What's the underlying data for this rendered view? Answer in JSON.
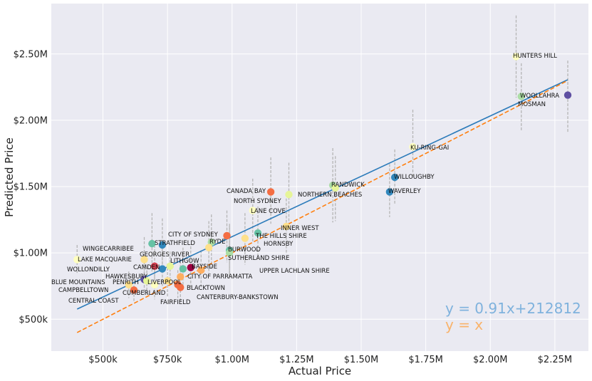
{
  "chart_data": {
    "type": "scatter",
    "title": "",
    "xlabel": "Actual Price",
    "ylabel": "Predicted Price",
    "xlim": [
      300000,
      2380000
    ],
    "ylim": [
      260000,
      2880000
    ],
    "x_ticks": [
      {
        "value": 500000,
        "label": "$500k"
      },
      {
        "value": 750000,
        "label": "$750k"
      },
      {
        "value": 1000000,
        "label": "$1.00M"
      },
      {
        "value": 1250000,
        "label": "$1.25M"
      },
      {
        "value": 1500000,
        "label": "$1.50M"
      },
      {
        "value": 1750000,
        "label": "$1.75M"
      },
      {
        "value": 2000000,
        "label": "$2.00M"
      },
      {
        "value": 2250000,
        "label": "$2.25M"
      }
    ],
    "y_ticks": [
      {
        "value": 500000,
        "label": "$500k"
      },
      {
        "value": 1000000,
        "label": "$1.00M"
      },
      {
        "value": 1500000,
        "label": "$1.50M"
      },
      {
        "value": 2000000,
        "label": "$2.00M"
      },
      {
        "value": 2500000,
        "label": "$2.50M"
      }
    ],
    "grid": true,
    "background": "#eaeaf2",
    "fit_line": {
      "slope": 0.91,
      "intercept": 212812,
      "color": "#2b7bba",
      "label": "y = 0.91x+212812"
    },
    "identity_line": {
      "color": "#ff7f0e",
      "label": "y = x"
    },
    "points": [
      {
        "name": "HUNTERS HILL",
        "x": 2100000,
        "y": 2480000,
        "lo": 2170000,
        "hi": 2790000,
        "color": "#ffffbf"
      },
      {
        "name": "WOOLLAHRA",
        "x": 2120000,
        "y": 2180000,
        "lo": 1920000,
        "hi": 2430000,
        "color": "#abdda4"
      },
      {
        "name": "MOSMAN",
        "x": 2300000,
        "y": 2190000,
        "lo": 1910000,
        "hi": 2450000,
        "color": "#5e4fa2"
      },
      {
        "name": "KU-RING-GAI",
        "x": 1700000,
        "y": 1800000,
        "lo": 1580000,
        "hi": 2080000,
        "color": "#ffffbf"
      },
      {
        "name": "WILLOUGHBY",
        "x": 1630000,
        "y": 1570000,
        "lo": 1370000,
        "hi": 1780000,
        "color": "#3288bd"
      },
      {
        "name": "WAVERLEY",
        "x": 1610000,
        "y": 1460000,
        "lo": 1270000,
        "hi": 1670000,
        "color": "#3288bd"
      },
      {
        "name": "RANDWICK",
        "x": 1390000,
        "y": 1510000,
        "lo": 1230000,
        "hi": 1790000,
        "color": "#abdda4"
      },
      {
        "name": "NORTHERN BEACHES",
        "x": 1400000,
        "y": 1490000,
        "lo": 1240000,
        "hi": 1730000,
        "color": "#e6f598"
      },
      {
        "name": "CANADA BAY",
        "x": 1150000,
        "y": 1460000,
        "lo": 1220000,
        "hi": 1720000,
        "color": "#f46d43"
      },
      {
        "name": "NORTH SYDNEY",
        "x": 1220000,
        "y": 1440000,
        "lo": 1180000,
        "hi": 1680000,
        "color": "#e6f598"
      },
      {
        "name": "LANE COVE",
        "x": 1080000,
        "y": 1320000,
        "lo": 1080000,
        "hi": 1560000,
        "color": "#ffffbf"
      },
      {
        "name": "INNER WEST",
        "x": 1210000,
        "y": 1200000,
        "lo": 990000,
        "hi": 1410000,
        "color": "#fee08b"
      },
      {
        "name": "THE HILLS SHIRE",
        "x": 1100000,
        "y": 1150000,
        "lo": 950000,
        "hi": 1350000,
        "color": "#66c2a5"
      },
      {
        "name": "CITY OF SYDNEY",
        "x": 980000,
        "y": 1130000,
        "lo": 930000,
        "hi": 1320000,
        "color": "#f46d43"
      },
      {
        "name": "HORNSBY",
        "x": 1050000,
        "y": 1110000,
        "lo": 910000,
        "hi": 1300000,
        "color": "#fee08b"
      },
      {
        "name": "RYDE",
        "x": 920000,
        "y": 1080000,
        "lo": 880000,
        "hi": 1290000,
        "color": "#abdda4"
      },
      {
        "name": "STRATHFIELD",
        "x": 730000,
        "y": 1060000,
        "lo": 860000,
        "hi": 1260000,
        "color": "#3288bd"
      },
      {
        "name": "WINGECARRIBEE",
        "x": 690000,
        "y": 1070000,
        "lo": 850000,
        "hi": 1300000,
        "color": "#66c2a5"
      },
      {
        "name": "GEORGES RIVER",
        "x": 910000,
        "y": 1040000,
        "lo": 850000,
        "hi": 1240000,
        "color": "#fee08b"
      },
      {
        "name": "BURWOOD",
        "x": 990000,
        "y": 1020000,
        "lo": 830000,
        "hi": 1220000,
        "color": "#66c2a5"
      },
      {
        "name": "SUTHERLAND SHIRE",
        "x": 990000,
        "y": 1000000,
        "lo": 810000,
        "hi": 1200000,
        "color": "#abdda4"
      },
      {
        "name": "LAKE MACQUARIE",
        "x": 400000,
        "y": 950000,
        "lo": 850000,
        "hi": 1060000,
        "color": "#ffffbf"
      },
      {
        "name": "WOLLONDILLY",
        "x": 660000,
        "y": 950000,
        "lo": 770000,
        "hi": 1120000,
        "color": "#fee08b"
      },
      {
        "name": "CAMDEN",
        "x": 700000,
        "y": 900000,
        "lo": 750000,
        "hi": 1060000,
        "color": "#d53e4f"
      },
      {
        "name": "LITHGOW",
        "x": 760000,
        "y": 900000,
        "lo": 780000,
        "hi": 1010000,
        "color": "#e6f598"
      },
      {
        "name": "BAYSIDE",
        "x": 840000,
        "y": 890000,
        "lo": 740000,
        "hi": 1050000,
        "color": "#9e0142"
      },
      {
        "name": "HAWKESBURY",
        "x": 730000,
        "y": 880000,
        "lo": 740000,
        "hi": 1030000,
        "color": "#3288bd"
      },
      {
        "name": "CITY OF PARRAMATTA",
        "x": 810000,
        "y": 880000,
        "lo": 730000,
        "hi": 1040000,
        "color": "#66c2a5"
      },
      {
        "name": "UPPER LACHLAN SHIRE",
        "x": 880000,
        "y": 870000,
        "lo": 730000,
        "hi": 1020000,
        "color": "#fdae61"
      },
      {
        "name": "BLUE MOUNTAINS",
        "x": 660000,
        "y": 800000,
        "lo": 690000,
        "hi": 920000,
        "color": "#5e4fa2"
      },
      {
        "name": "PENRITH",
        "x": 670000,
        "y": 790000,
        "lo": 680000,
        "hi": 900000,
        "color": "#e6f598"
      },
      {
        "name": "LIVERPOOL",
        "x": 750000,
        "y": 790000,
        "lo": 670000,
        "hi": 920000,
        "color": "#fee08b"
      },
      {
        "name": "BLACKTOWN",
        "x": 800000,
        "y": 820000,
        "lo": 700000,
        "hi": 940000,
        "color": "#fdae61"
      },
      {
        "name": "CAMPBELLTOWN",
        "x": 600000,
        "y": 760000,
        "lo": 660000,
        "hi": 860000,
        "color": "#fee08b"
      },
      {
        "name": "CUMBERLAND",
        "x": 700000,
        "y": 760000,
        "lo": 650000,
        "hi": 880000,
        "color": "#ffffbf"
      },
      {
        "name": "CANTERBURY-BANKSTOWN",
        "x": 790000,
        "y": 760000,
        "lo": 660000,
        "hi": 870000,
        "color": "#f46d43"
      },
      {
        "name": "FAIRFIELD",
        "x": 800000,
        "y": 740000,
        "lo": 640000,
        "hi": 850000,
        "color": "#f46d43"
      },
      {
        "name": "CENTRAL COAST",
        "x": 620000,
        "y": 720000,
        "lo": 630000,
        "hi": 820000,
        "color": "#f46d43"
      }
    ]
  }
}
